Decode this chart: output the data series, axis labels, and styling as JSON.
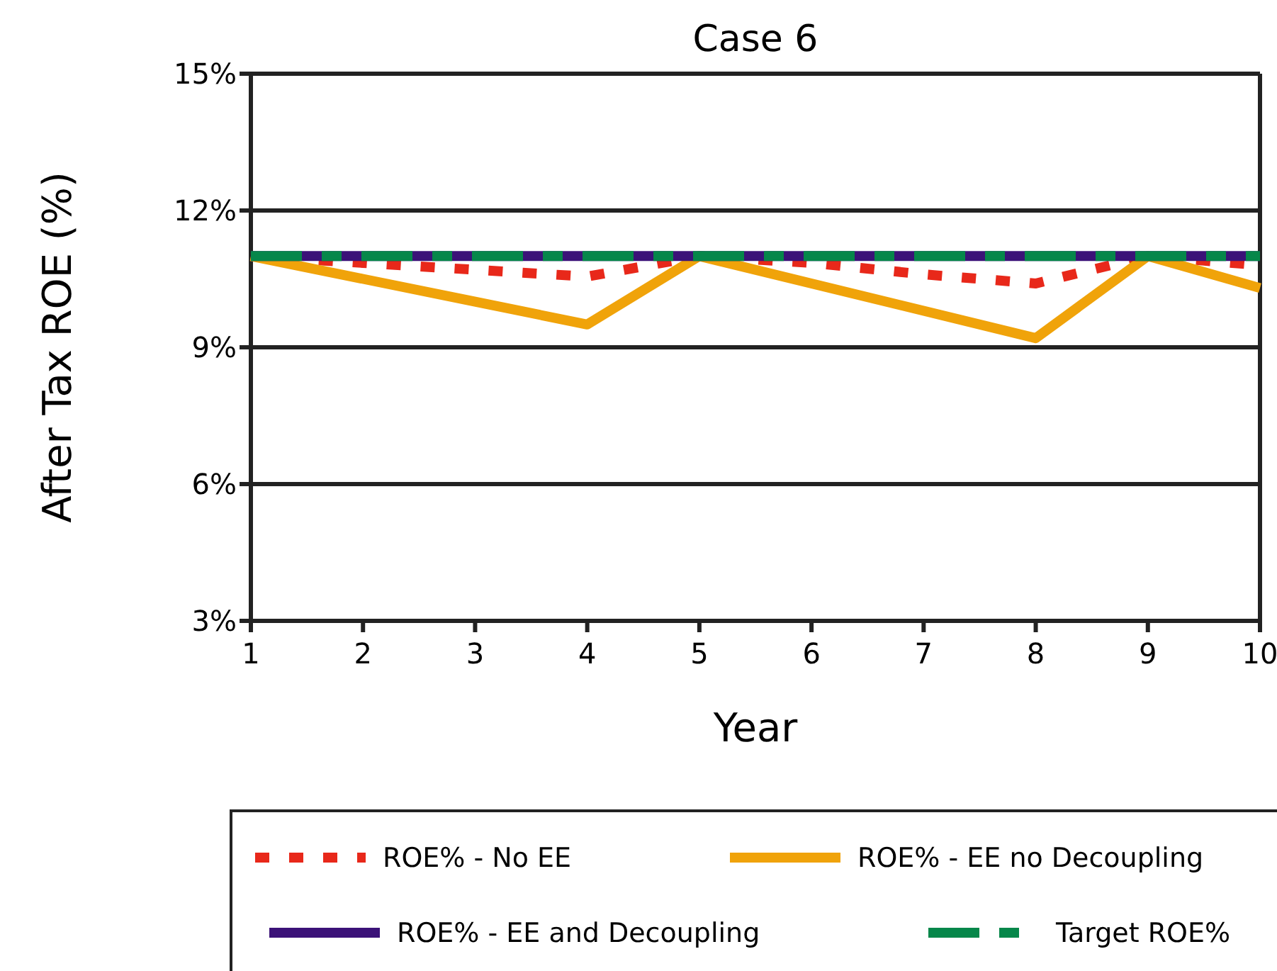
{
  "chart_data": {
    "type": "line",
    "title": "Case 6",
    "xlabel": "Year",
    "ylabel": "After Tax ROE (%)",
    "x": [
      1,
      2,
      3,
      4,
      5,
      6,
      7,
      8,
      9,
      10
    ],
    "xlim": [
      1,
      10
    ],
    "xticks": [
      1,
      2,
      3,
      4,
      5,
      6,
      7,
      8,
      9,
      10
    ],
    "ylim": [
      3,
      15
    ],
    "yticks": [
      {
        "value": 3,
        "label": "3%"
      },
      {
        "value": 6,
        "label": "6%"
      },
      {
        "value": 9,
        "label": "9%"
      },
      {
        "value": 12,
        "label": "12%"
      },
      {
        "value": 15,
        "label": "15%"
      }
    ],
    "grid": "y",
    "legend": "bottom",
    "marker": "none",
    "series": [
      {
        "name": "ROE% - No EE",
        "color": "#e8281a",
        "line_style": "dashed",
        "values": [
          11,
          10.85,
          10.7,
          10.55,
          11,
          10.85,
          10.6,
          10.4,
          11,
          10.8
        ]
      },
      {
        "name": "ROE% - EE no Decoupling",
        "color": "#f0a30a",
        "line_style": "solid",
        "values": [
          11,
          10.5,
          10,
          9.5,
          11,
          10.4,
          9.8,
          9.2,
          11,
          10.3
        ]
      },
      {
        "name": "ROE% - EE and Decoupling",
        "color": "#3b1278",
        "line_style": "solid",
        "values": [
          11,
          11,
          11,
          11,
          11,
          11,
          11,
          11,
          11,
          11
        ]
      },
      {
        "name": "Target ROE%",
        "color": "#06874a",
        "line_style": "dashdot",
        "values": [
          11,
          11,
          11,
          11,
          11,
          11,
          11,
          11,
          11,
          11
        ]
      }
    ]
  }
}
